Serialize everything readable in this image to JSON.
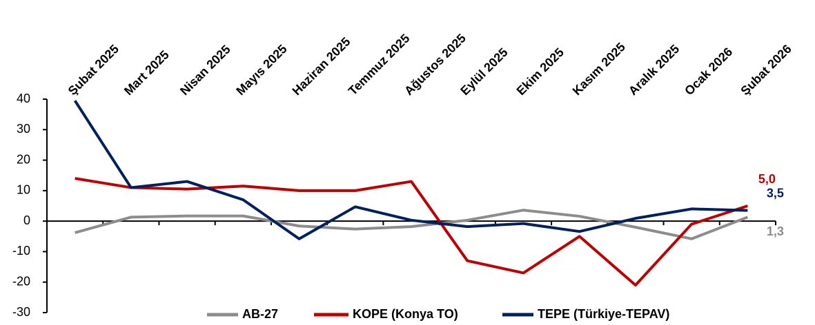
{
  "chart_data": {
    "type": "line",
    "categories": [
      "Şubat 2025",
      "Mart 2025",
      "Nisan 2025",
      "Mayıs 2025",
      "Haziran 2025",
      "Temmuz 2025",
      "Ağustos 2025",
      "Eylül 2025",
      "Ekim 2025",
      "Kasım 2025",
      "Aralık 2025",
      "Ocak 2026",
      "Şubat 2026"
    ],
    "series": [
      {
        "name": "AB-27",
        "color": "#8c8c8c",
        "values": [
          -3.8,
          1.3,
          1.7,
          1.7,
          -1.6,
          -2.6,
          -1.8,
          0.3,
          3.6,
          1.6,
          -2.0,
          -5.8,
          1.3
        ],
        "value_labels": [
          null,
          null,
          null,
          null,
          null,
          null,
          null,
          null,
          null,
          null,
          null,
          null,
          "1,3"
        ]
      },
      {
        "name": "KOPE (Konya TO)",
        "color": "#c00000",
        "values": [
          14.0,
          11.0,
          10.5,
          11.5,
          10.0,
          10.0,
          13.0,
          -13.0,
          -17.0,
          -5.0,
          -21.0,
          -1.0,
          5.0
        ],
        "value_labels": [
          null,
          null,
          null,
          null,
          null,
          null,
          null,
          null,
          null,
          null,
          null,
          null,
          "5,0"
        ]
      },
      {
        "name": "TEPE (Türkiye-TEPAV)",
        "color": "#002060",
        "values": [
          39.5,
          11.0,
          13.0,
          7.0,
          -5.8,
          4.7,
          0.3,
          -1.8,
          -0.8,
          -3.4,
          0.9,
          4.0,
          3.5
        ],
        "value_labels": [
          null,
          null,
          null,
          null,
          null,
          null,
          null,
          null,
          null,
          null,
          null,
          null,
          "3,5"
        ]
      }
    ],
    "ylim": [
      -30,
      40
    ],
    "yticks": [
      -30,
      -20,
      -10,
      0,
      10,
      20,
      30,
      40
    ],
    "legend": "bottom"
  }
}
